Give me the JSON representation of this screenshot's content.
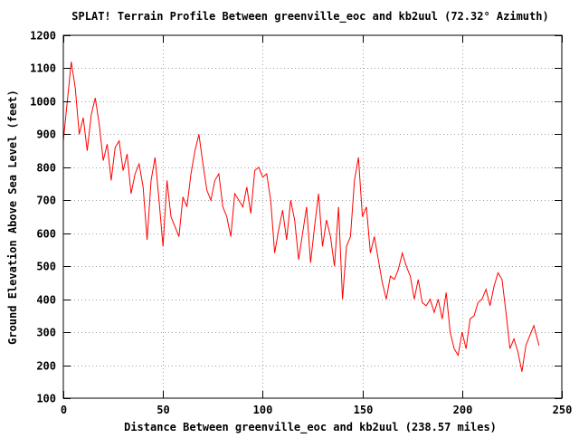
{
  "chart_data": {
    "type": "line",
    "title": "SPLAT! Terrain Profile Between greenville_eoc and kb2uul (72.32° Azimuth)",
    "xlabel": "Distance Between greenville_eoc and kb2uul (238.57 miles)",
    "ylabel": "Ground Elevation Above Sea Level (feet)",
    "xlim": [
      0,
      250
    ],
    "ylim": [
      100,
      1200
    ],
    "xticks": [
      0,
      50,
      100,
      150,
      200,
      250
    ],
    "yticks": [
      100,
      200,
      300,
      400,
      500,
      600,
      700,
      800,
      900,
      1000,
      1100,
      1200
    ],
    "grid": true,
    "line_color": "#ff0000",
    "series": [
      {
        "x": [
          0,
          2,
          4,
          6,
          8,
          10,
          12,
          14,
          16,
          18,
          20,
          22,
          24,
          26,
          28,
          30,
          32,
          34,
          36,
          38,
          40,
          42,
          44,
          46,
          48,
          50,
          52,
          54,
          56,
          58,
          60,
          62,
          64,
          66,
          68,
          70,
          72,
          74,
          76,
          78,
          80,
          82,
          84,
          86,
          88,
          90,
          92,
          94,
          96,
          98,
          100,
          102,
          104,
          106,
          108,
          110,
          112,
          114,
          116,
          118,
          120,
          122,
          124,
          126,
          128,
          130,
          132,
          134,
          136,
          138,
          140,
          142,
          144,
          146,
          148,
          150,
          152,
          154,
          156,
          158,
          160,
          162,
          164,
          166,
          168,
          170,
          172,
          174,
          176,
          178,
          180,
          182,
          184,
          186,
          188,
          190,
          192,
          194,
          196,
          198,
          200,
          202,
          204,
          206,
          208,
          210,
          212,
          214,
          216,
          218,
          220,
          222,
          224,
          226,
          228,
          230,
          232,
          234,
          236,
          238.57
        ],
        "values": [
          880,
          1000,
          1120,
          1040,
          900,
          950,
          850,
          960,
          1010,
          930,
          820,
          870,
          760,
          860,
          880,
          790,
          840,
          720,
          780,
          810,
          740,
          580,
          760,
          830,
          700,
          560,
          760,
          650,
          620,
          590,
          710,
          680,
          780,
          850,
          900,
          810,
          730,
          700,
          760,
          780,
          680,
          650,
          590,
          720,
          700,
          680,
          740,
          660,
          790,
          800,
          770,
          780,
          700,
          540,
          610,
          670,
          580,
          700,
          640,
          520,
          600,
          680,
          510,
          620,
          720,
          560,
          640,
          590,
          500,
          680,
          400,
          560,
          590,
          760,
          830,
          650,
          680,
          540,
          590,
          520,
          450,
          400,
          470,
          460,
          490,
          540,
          500,
          470,
          400,
          460,
          390,
          380,
          400,
          360,
          400,
          340,
          420,
          300,
          250,
          230,
          300,
          250,
          340,
          350,
          390,
          400,
          430,
          380,
          440,
          480,
          460,
          360,
          250,
          280,
          240,
          180,
          260,
          290,
          320,
          260
        ]
      }
    ]
  }
}
